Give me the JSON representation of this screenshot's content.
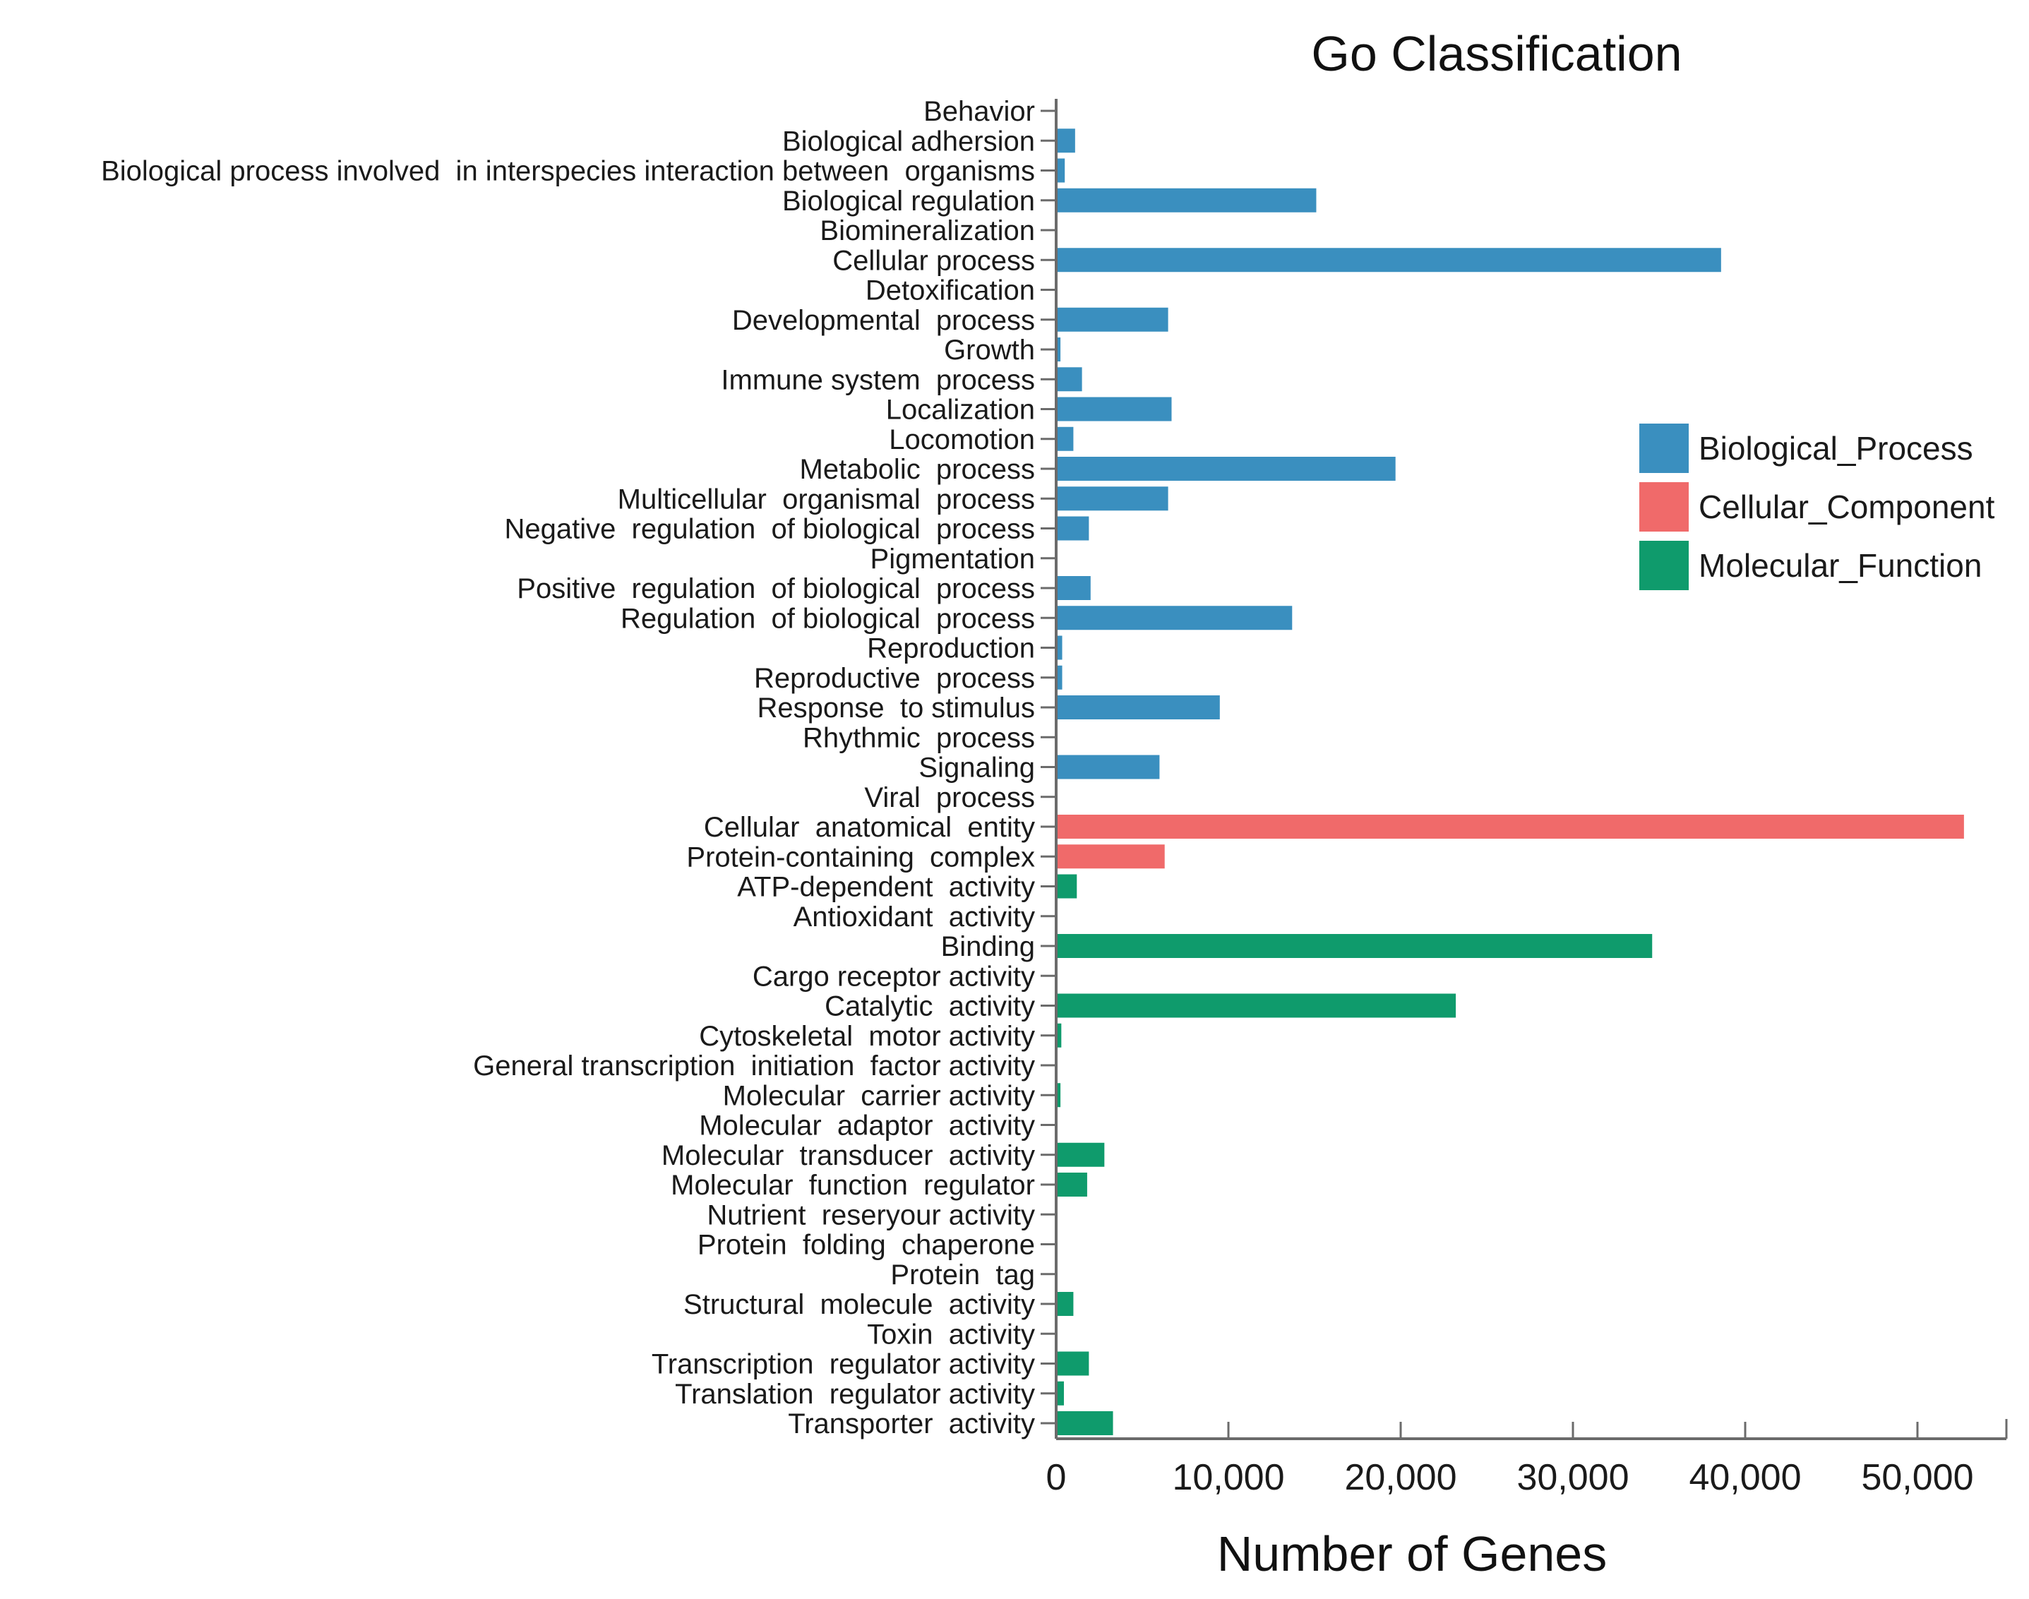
{
  "chart_data": {
    "type": "bar",
    "orientation": "horizontal",
    "title": "Go Classification",
    "xlabel": "Number of Genes",
    "ylabel": "",
    "xlim": [
      0,
      55000
    ],
    "xticks": [
      0,
      10000,
      20000,
      30000,
      40000,
      50000
    ],
    "xtick_labels": [
      "0",
      "10,000",
      "20,000",
      "30,000",
      "40,000",
      "50,000"
    ],
    "legend_position": "right",
    "grid": false,
    "groups": [
      {
        "name": "Biological_Process",
        "color": "#3a8fbf"
      },
      {
        "name": "Cellular_Component",
        "color": "#f06a6a"
      },
      {
        "name": "Molecular_Function",
        "color": "#0f9b6c"
      }
    ],
    "bars": [
      {
        "category": "Behavior",
        "value": 0,
        "group": 0
      },
      {
        "category": "Biological adhersion",
        "value": 1100,
        "group": 0
      },
      {
        "category": "Biological process involved  in interspecies interaction between  organisms",
        "value": 500,
        "group": 0
      },
      {
        "category": "Biological regulation",
        "value": 15100,
        "group": 0
      },
      {
        "category": "Biomineralization",
        "value": 0,
        "group": 0
      },
      {
        "category": "Cellular process",
        "value": 38600,
        "group": 0
      },
      {
        "category": "Detoxification",
        "value": 50,
        "group": 0
      },
      {
        "category": "Developmental  process",
        "value": 6500,
        "group": 0
      },
      {
        "category": "Growth",
        "value": 250,
        "group": 0
      },
      {
        "category": "Immune system  process",
        "value": 1500,
        "group": 0
      },
      {
        "category": "Localization",
        "value": 6700,
        "group": 0
      },
      {
        "category": "Locomotion",
        "value": 1000,
        "group": 0
      },
      {
        "category": "Metabolic  process",
        "value": 19700,
        "group": 0
      },
      {
        "category": "Multicellular  organismal  process",
        "value": 6500,
        "group": 0
      },
      {
        "category": "Negative  regulation  of biological  process",
        "value": 1900,
        "group": 0
      },
      {
        "category": "Pigmentation",
        "value": 0,
        "group": 0
      },
      {
        "category": "Positive  regulation  of biological  process",
        "value": 2000,
        "group": 0
      },
      {
        "category": "Regulation  of biological  process",
        "value": 13700,
        "group": 0
      },
      {
        "category": "Reproduction",
        "value": 350,
        "group": 0
      },
      {
        "category": "Reproductive  process",
        "value": 350,
        "group": 0
      },
      {
        "category": "Response  to stimulus",
        "value": 9500,
        "group": 0
      },
      {
        "category": "Rhythmic  process",
        "value": 50,
        "group": 0
      },
      {
        "category": "Signaling",
        "value": 6000,
        "group": 0
      },
      {
        "category": "Viral  process",
        "value": 50,
        "group": 0
      },
      {
        "category": "Cellular  anatomical  entity",
        "value": 52700,
        "group": 1
      },
      {
        "category": "Protein-containing  complex",
        "value": 6300,
        "group": 1
      },
      {
        "category": "ATP-dependent  activity",
        "value": 1200,
        "group": 2
      },
      {
        "category": "Antioxidant  activity",
        "value": 50,
        "group": 2
      },
      {
        "category": "Binding",
        "value": 34600,
        "group": 2
      },
      {
        "category": "Cargo receptor activity",
        "value": 0,
        "group": 2
      },
      {
        "category": "Catalytic  activity",
        "value": 23200,
        "group": 2
      },
      {
        "category": "Cytoskeletal  motor activity",
        "value": 300,
        "group": 2
      },
      {
        "category": "General transcription  initiation  factor activity",
        "value": 0,
        "group": 2
      },
      {
        "category": "Molecular  carrier activity",
        "value": 250,
        "group": 2
      },
      {
        "category": "Molecular  adaptor  activity",
        "value": 0,
        "group": 2
      },
      {
        "category": "Molecular  transducer  activity",
        "value": 2800,
        "group": 2
      },
      {
        "category": "Molecular  function  regulator",
        "value": 1800,
        "group": 2
      },
      {
        "category": "Nutrient  reseryour activity",
        "value": 0,
        "group": 2
      },
      {
        "category": "Protein  folding  chaperone",
        "value": 0,
        "group": 2
      },
      {
        "category": "Protein  tag",
        "value": 0,
        "group": 2
      },
      {
        "category": "Structural  molecule  activity",
        "value": 1000,
        "group": 2
      },
      {
        "category": "Toxin  activity",
        "value": 0,
        "group": 2
      },
      {
        "category": "Transcription  regulator activity",
        "value": 1900,
        "group": 2
      },
      {
        "category": "Translation  regulator activity",
        "value": 450,
        "group": 2
      },
      {
        "category": "Transporter  activity",
        "value": 3300,
        "group": 2
      }
    ]
  }
}
